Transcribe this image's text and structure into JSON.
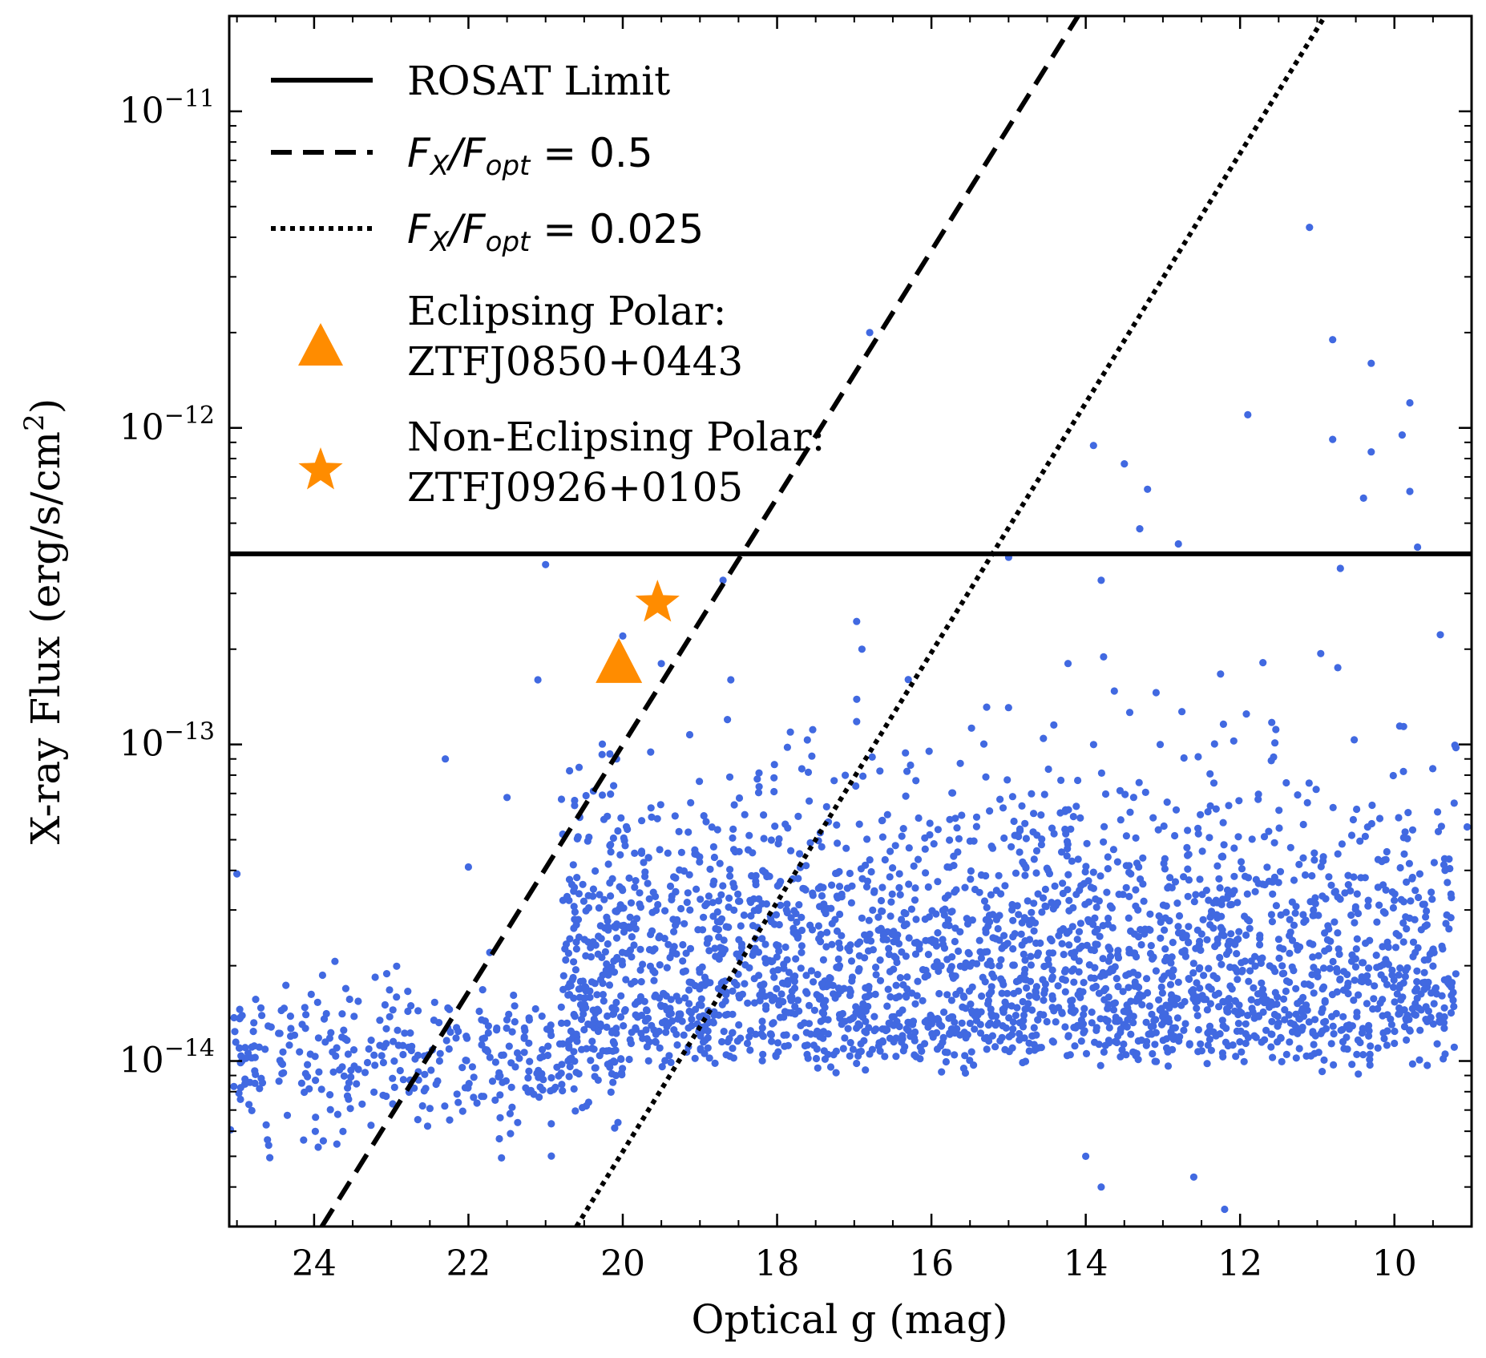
{
  "colors": {
    "points": "#4169e1",
    "markers": "#ff8c00",
    "lines": "#000000"
  },
  "chart_data": {
    "type": "scatter",
    "title": "",
    "xlabel": "Optical g (mag)",
    "ylabel": "X-ray Flux (erg/s/cm²)",
    "ylabel_parts": {
      "main": "X-ray Flux (erg/s/cm",
      "sup": "2",
      "end": ")"
    },
    "x_axis": {
      "range": [
        25.1,
        9.0
      ],
      "inverted": true,
      "scale": "linear",
      "ticks": [
        24,
        22,
        20,
        18,
        16,
        14,
        12,
        10
      ],
      "tick_labels": [
        "24",
        "22",
        "20",
        "18",
        "16",
        "14",
        "12",
        "10"
      ]
    },
    "y_axis": {
      "range": [
        3e-15,
        2e-11
      ],
      "scale": "log",
      "ticks": [
        1e-14,
        1e-13,
        1e-12,
        1e-11
      ],
      "tick_labels": [
        {
          "base": "10",
          "exp": "−14"
        },
        {
          "base": "10",
          "exp": "−13"
        },
        {
          "base": "10",
          "exp": "−12"
        },
        {
          "base": "10",
          "exp": "−11"
        }
      ]
    },
    "grid": false,
    "legend_position": "top-left",
    "legend": [
      {
        "key": "rosat",
        "label": "ROSAT Limit",
        "style": "solid"
      },
      {
        "key": "fx05",
        "label_parts": {
          "F": "F",
          "sub1": "X",
          "slash": "/F",
          "sub2": "opt",
          "rest": " = 0.5"
        },
        "style": "dashed"
      },
      {
        "key": "fx0025",
        "label_parts": {
          "F": "F",
          "sub1": "X",
          "slash": "/F",
          "sub2": "opt",
          "rest": " = 0.025"
        },
        "style": "dotted"
      },
      {
        "key": "eclipsing",
        "label_lines": [
          "Eclipsing Polar:",
          "ZTFJ0850+0443"
        ],
        "marker": "triangle"
      },
      {
        "key": "noneclipsing",
        "label_lines": [
          "Non-Eclipsing Polar:",
          "ZTFJ0926+0105"
        ],
        "marker": "star"
      }
    ],
    "reference_lines": {
      "rosat_limit": {
        "y": 4e-13
      },
      "fx_fopt_0_5": {
        "points": [
          [
            23.9,
            3e-15
          ],
          [
            14.1,
            2e-11
          ]
        ]
      },
      "fx_fopt_0_025": {
        "points": [
          [
            20.6,
            3e-15
          ],
          [
            10.9,
            2e-11
          ]
        ]
      }
    },
    "highlighted": [
      {
        "name": "ZTFJ0850+0443",
        "marker": "triangle",
        "x": 20.05,
        "y": 1.8e-13
      },
      {
        "name": "ZTFJ0926+0105",
        "marker": "star",
        "x": 19.55,
        "y": 2.8e-13
      }
    ],
    "background_points": {
      "approx_count": 3000,
      "note_points": [
        [
          11.1,
          4.3e-12
        ],
        [
          16.8,
          2e-12
        ],
        [
          10.8,
          1.9e-12
        ],
        [
          10.3,
          1.6e-12
        ],
        [
          9.8,
          1.2e-12
        ],
        [
          11.9,
          1.1e-12
        ],
        [
          9.9,
          9.5e-13
        ],
        [
          10.8,
          9.2e-13
        ],
        [
          13.9,
          8.8e-13
        ],
        [
          10.3,
          8.4e-13
        ],
        [
          13.5,
          7.7e-13
        ],
        [
          13.2,
          6.4e-13
        ],
        [
          9.8,
          6.3e-13
        ],
        [
          10.4,
          6e-13
        ],
        [
          13.3,
          4.8e-13
        ],
        [
          12.8,
          4.3e-13
        ],
        [
          9.7,
          4.2e-13
        ],
        [
          21.0,
          3.7e-13
        ],
        [
          10.7,
          3.6e-13
        ],
        [
          15.0,
          3.9e-13
        ],
        [
          18.7,
          3.3e-13
        ],
        [
          13.8,
          3.3e-13
        ],
        [
          20.0,
          2.2e-13
        ],
        [
          16.9,
          2e-13
        ],
        [
          19.5,
          1.8e-13
        ],
        [
          21.1,
          1.6e-13
        ],
        [
          18.6,
          1.6e-13
        ],
        [
          22.3,
          9e-14
        ],
        [
          21.5,
          6.8e-14
        ],
        [
          25.0,
          3.9e-14
        ],
        [
          22.0,
          4.1e-14
        ],
        [
          14.0,
          5e-15
        ],
        [
          12.6,
          4.3e-15
        ],
        [
          12.2,
          3.4e-15
        ],
        [
          13.8,
          4e-15
        ]
      ]
    }
  }
}
